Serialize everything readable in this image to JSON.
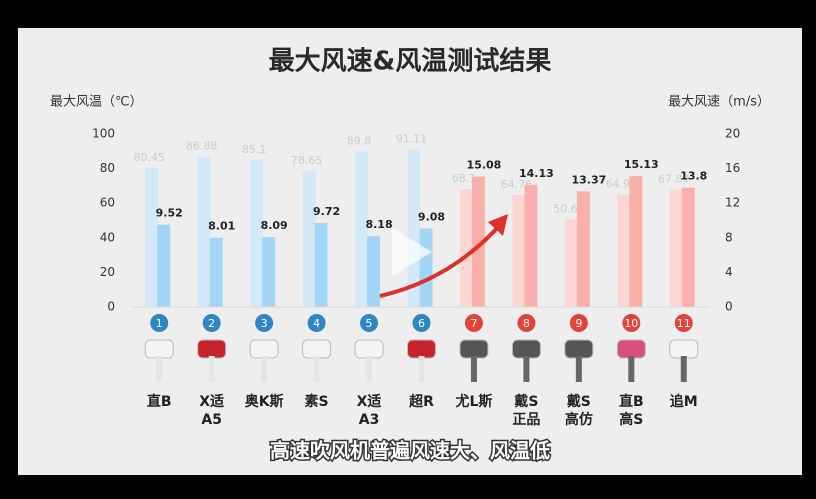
{
  "chart_data": {
    "type": "bar",
    "title": "最大风速&风温测试结果",
    "y_label": "最大风温（℃）",
    "y2_label": "最大风速（m/s）",
    "caption": "高速吹风机普遍风速大、风温低",
    "categories": [
      [
        "直B"
      ],
      [
        "X适",
        "A5"
      ],
      [
        "奥K斯"
      ],
      [
        "素S"
      ],
      [
        "X适",
        "A3"
      ],
      [
        "超R"
      ],
      [
        "尤L斯"
      ],
      [
        "戴S",
        "正品"
      ],
      [
        "戴S",
        "高仿"
      ],
      [
        "直B",
        "高S"
      ],
      [
        "追M"
      ]
    ],
    "badges": [
      1,
      2,
      3,
      4,
      5,
      6,
      7,
      8,
      9,
      10,
      11
    ],
    "badge_colors": [
      "#2f86c4",
      "#2f86c4",
      "#2f86c4",
      "#2f86c4",
      "#2f86c4",
      "#2f86c4",
      "#e0443a",
      "#e0443a",
      "#e0443a",
      "#e0443a",
      "#e0443a"
    ],
    "series": [
      {
        "name": "最大风温",
        "axis": "y",
        "colors": [
          "#d4e9f8",
          "#d4e9f8",
          "#d4e9f8",
          "#d4e9f8",
          "#d4e9f8",
          "#d4e9f8",
          "#fbd6d3",
          "#fbd6d3",
          "#fbd6d3",
          "#fbd6d3",
          "#fbd6d3"
        ],
        "values": [
          80.45,
          86.88,
          85.1,
          78.65,
          89.8,
          91.11,
          68.1,
          64.76,
          50.65,
          64.95,
          67.89
        ]
      },
      {
        "name": "最大风速",
        "axis": "y2",
        "colors": [
          "#a3d5f6",
          "#a3d5f6",
          "#a3d5f6",
          "#a3d5f6",
          "#a3d5f6",
          "#a3d5f6",
          "#f9b0aa",
          "#f9b0aa",
          "#f9b0aa",
          "#f9b0aa",
          "#f9b0aa"
        ],
        "values": [
          9.52,
          8.01,
          8.09,
          9.72,
          8.18,
          9.08,
          15.08,
          14.13,
          13.37,
          15.13,
          13.8
        ]
      }
    ],
    "ylim": [
      0,
      100
    ],
    "yticks": [
      0,
      20,
      40,
      60,
      80,
      100
    ],
    "y2lim": [
      0,
      20
    ],
    "y2ticks": [
      0,
      4,
      8,
      12,
      16,
      20
    ],
    "grid": false
  }
}
